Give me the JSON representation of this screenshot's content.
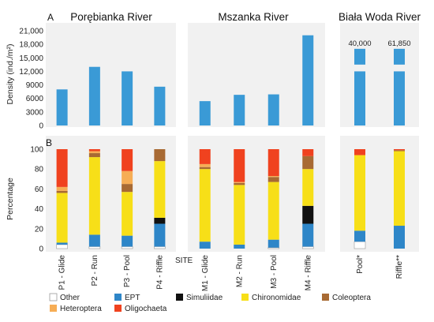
{
  "panel_a_letter": "A",
  "panel_b_letter": "B",
  "site_label": "SITE",
  "colors": {
    "Other": "#ffffff",
    "EPT": "#2e86c8",
    "Simuliidae": "#111111",
    "Chironomidae": "#f7df18",
    "Coleoptera": "#a86a33",
    "Heteroptera": "#f6ad55",
    "Oligochaeta": "#f0421f",
    "density_bar": "#3a9ad6"
  },
  "chart_data": [
    {
      "type": "bar",
      "panel": "A",
      "ylabel": "Density (ind./m²)",
      "yticks": [
        "0",
        "3000",
        "6000",
        "9000",
        "12,000",
        "15,000",
        "18,000",
        "21,000"
      ],
      "ylim": [
        0,
        21000
      ],
      "axis_break": true,
      "rivers": [
        {
          "title": "Porębianka River",
          "categories": [
            "P1 - Glide",
            "P2 - Run",
            "P3 - Pool",
            "P4 - Riffle"
          ],
          "values": [
            8000,
            13000,
            12000,
            8600
          ]
        },
        {
          "title": "Mszanka River",
          "categories": [
            "M1 - Glide",
            "M2 - Run",
            "M3 - Pool",
            "M4 - Riffle"
          ],
          "values": [
            5400,
            6800,
            6900,
            20000
          ]
        },
        {
          "title": "Biała Woda River",
          "categories": [
            "Pool*",
            "Riffle**"
          ],
          "values": [
            40000,
            61850
          ],
          "value_labels": [
            "40,000",
            "61,850"
          ]
        }
      ]
    },
    {
      "type": "bar",
      "stacked": true,
      "panel": "B",
      "ylabel": "Percentage",
      "yticks": [
        "0",
        "20",
        "40",
        "60",
        "80",
        "100"
      ],
      "ylim": [
        0,
        100
      ],
      "series_order": [
        "Other",
        "EPT",
        "Simuliidae",
        "Chironomidae",
        "Coleoptera",
        "Heteroptera",
        "Oligochaeta"
      ],
      "rivers": [
        {
          "categories": [
            "P1 - Glide",
            "P2 - Run",
            "P3 - Pool",
            "P4 - Riffle"
          ],
          "stacks": [
            {
              "Other": 4,
              "EPT": 2,
              "Simuliidae": 0,
              "Chironomidae": 50,
              "Coleoptera": 2,
              "Heteroptera": 4,
              "Oligochaeta": 38
            },
            {
              "Other": 2,
              "EPT": 12,
              "Simuliidae": 0,
              "Chironomidae": 78,
              "Coleoptera": 4,
              "Heteroptera": 2,
              "Oligochaeta": 2
            },
            {
              "Other": 2,
              "EPT": 11,
              "Simuliidae": 0,
              "Chironomidae": 44,
              "Coleoptera": 8,
              "Heteroptera": 13,
              "Oligochaeta": 22
            },
            {
              "Other": 2,
              "EPT": 23,
              "Simuliidae": 6,
              "Chironomidae": 57,
              "Coleoptera": 12,
              "Heteroptera": 0,
              "Oligochaeta": 0
            }
          ]
        },
        {
          "categories": [
            "M1 - Glide",
            "M2 - Run",
            "M3 - Pool",
            "M4 - Riffle"
          ],
          "stacks": [
            {
              "Other": 0,
              "EPT": 7,
              "Simuliidae": 0,
              "Chironomidae": 73,
              "Coleoptera": 2,
              "Heteroptera": 3,
              "Oligochaeta": 15
            },
            {
              "Other": 0,
              "EPT": 4,
              "Simuliidae": 0,
              "Chironomidae": 60,
              "Coleoptera": 2,
              "Heteroptera": 1,
              "Oligochaeta": 33
            },
            {
              "Other": 1,
              "EPT": 8,
              "Simuliidae": 0,
              "Chironomidae": 58,
              "Coleoptera": 5,
              "Heteroptera": 1,
              "Oligochaeta": 27
            },
            {
              "Other": 2,
              "EPT": 23,
              "Simuliidae": 18,
              "Chironomidae": 37,
              "Coleoptera": 13,
              "Heteroptera": 0,
              "Oligochaeta": 7
            }
          ]
        },
        {
          "categories": [
            "Pool*",
            "Riffle**"
          ],
          "stacks": [
            {
              "Other": 7,
              "EPT": 11,
              "Simuliidae": 0,
              "Chironomidae": 76,
              "Coleoptera": 0,
              "Heteroptera": 0,
              "Oligochaeta": 6
            },
            {
              "Other": 0,
              "EPT": 23,
              "Simuliidae": 0,
              "Chironomidae": 75,
              "Coleoptera": 1,
              "Heteroptera": 0,
              "Oligochaeta": 1
            }
          ]
        }
      ],
      "legend": [
        "Other",
        "EPT",
        "Simuliidae",
        "Chironomidae",
        "Coleoptera",
        "Heteroptera",
        "Oligochaeta"
      ]
    }
  ]
}
